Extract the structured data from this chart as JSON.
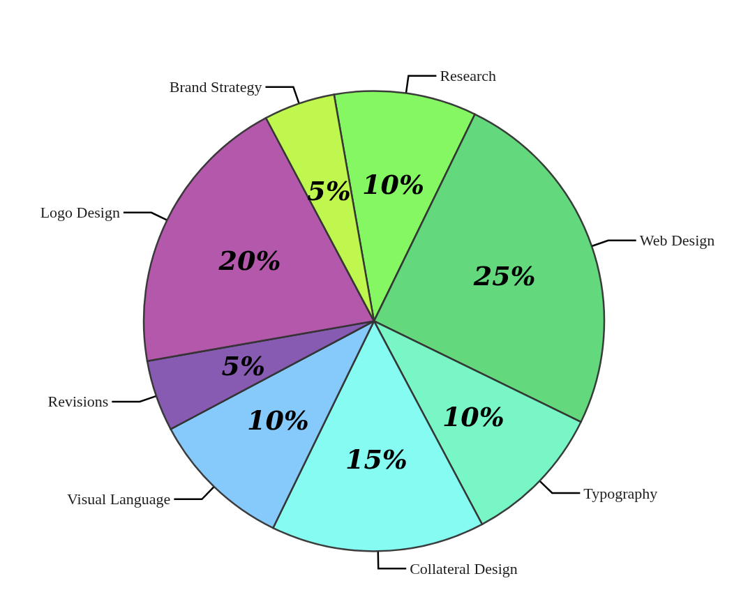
{
  "chart_data": {
    "type": "pie",
    "categories": [
      "Research",
      "Web Design",
      "Typography",
      "Collateral Design",
      "Visual Language",
      "Revisions",
      "Logo Design",
      "Brand Strategy"
    ],
    "values": [
      10,
      25,
      10,
      15,
      10,
      5,
      20,
      5
    ],
    "value_labels": [
      "10%",
      "25%",
      "10%",
      "15%",
      "10%",
      "5%",
      "20%",
      "5%"
    ],
    "colors": [
      "#7ef75a",
      "#5bd676",
      "#72f5c3",
      "#7ffbf0",
      "#7fc6fb",
      "#7f52ad",
      "#b04fa6",
      "#bcf746"
    ],
    "legend": false
  }
}
